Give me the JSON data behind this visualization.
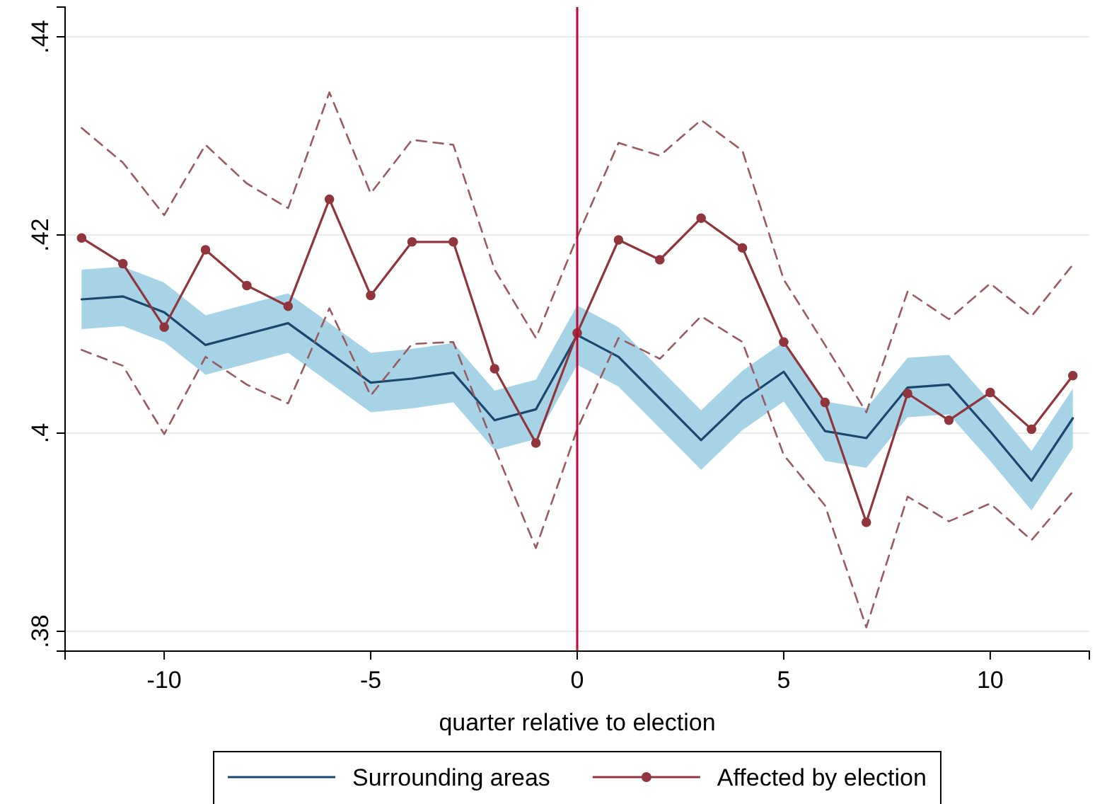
{
  "chart_data": {
    "type": "line",
    "xlabel": "quarter relative to election",
    "x": [
      -12,
      -11,
      -10,
      -9,
      -8,
      -7,
      -6,
      -5,
      -4,
      -3,
      -2,
      -1,
      0,
      1,
      2,
      3,
      4,
      5,
      6,
      7,
      8,
      9,
      10,
      11,
      12
    ],
    "xlim": [
      -12.4,
      12.4
    ],
    "xticks": [
      -10,
      -5,
      0,
      5,
      10
    ],
    "ylim": [
      0.378,
      0.443
    ],
    "yticks": [
      {
        "value": 0.38,
        "label": ".38"
      },
      {
        "value": 0.4,
        "label": ".4"
      },
      {
        "value": 0.42,
        "label": ".42"
      },
      {
        "value": 0.44,
        "label": ".44"
      }
    ],
    "grid": "y",
    "legend": "bottom",
    "ref_lines": [
      {
        "axis": "x",
        "value": 0,
        "color": "#c10534"
      }
    ],
    "series": [
      {
        "name": "Surrounding areas",
        "color": "#1a476f",
        "marker": "none",
        "line_style": "solid",
        "values": [
          0.4135,
          0.4138,
          0.4122,
          0.4089,
          0.41,
          0.4111,
          0.4081,
          0.4051,
          0.4055,
          0.4061,
          0.4013,
          0.4024,
          0.4099,
          0.4077,
          0.4035,
          0.3993,
          0.4033,
          0.4062,
          0.4002,
          0.3995,
          0.4046,
          0.4049,
          0.4002,
          0.3952,
          0.4015
        ],
        "upper": [
          0.4165,
          0.4168,
          0.4152,
          0.4119,
          0.413,
          0.4141,
          0.4111,
          0.4081,
          0.4085,
          0.4091,
          0.4043,
          0.4054,
          0.4129,
          0.4107,
          0.4065,
          0.4023,
          0.4063,
          0.4092,
          0.4032,
          0.4025,
          0.4076,
          0.4079,
          0.4032,
          0.3982,
          0.4045
        ],
        "lower": [
          0.4105,
          0.4108,
          0.4092,
          0.4059,
          0.407,
          0.4081,
          0.4051,
          0.4021,
          0.4025,
          0.4031,
          0.3983,
          0.3994,
          0.4069,
          0.4047,
          0.4005,
          0.3963,
          0.4003,
          0.4032,
          0.3972,
          0.3965,
          0.4016,
          0.4019,
          0.3972,
          0.3922,
          0.3985
        ]
      },
      {
        "name": "Affected by election",
        "color": "#90353b",
        "marker": "circle",
        "line_style": "solid",
        "values": [
          0.4197,
          0.4171,
          0.4107,
          0.4185,
          0.4149,
          0.4128,
          0.4236,
          0.4139,
          0.4193,
          0.4193,
          0.4065,
          0.399,
          0.4101,
          0.4195,
          0.4175,
          0.4217,
          0.4187,
          0.4092,
          0.4031,
          0.391,
          0.404,
          0.4013,
          0.4041,
          0.4004,
          0.4058
        ]
      },
      {
        "color": "#9a5a60",
        "marker": "none",
        "line_style": "dashed",
        "values": [
          0.4308,
          0.4273,
          0.422,
          0.4291,
          0.4252,
          0.4227,
          0.4344,
          0.4242,
          0.4296,
          0.4291,
          0.4165,
          0.4096,
          0.4198,
          0.4293,
          0.428,
          0.4316,
          0.4285,
          0.4155,
          0.4089,
          0.4021,
          0.4143,
          0.4115,
          0.4151,
          0.4118,
          0.417
        ]
      },
      {
        "color": "#9a5a60",
        "marker": "none",
        "line_style": "dashed",
        "values": [
          0.4084,
          0.4068,
          0.3999,
          0.4077,
          0.4049,
          0.403,
          0.4126,
          0.4038,
          0.409,
          0.4092,
          0.3985,
          0.3884,
          0.4004,
          0.4096,
          0.4075,
          0.4118,
          0.4092,
          0.3978,
          0.3927,
          0.3804,
          0.3936,
          0.3911,
          0.3929,
          0.3892,
          0.3941
        ]
      }
    ]
  }
}
